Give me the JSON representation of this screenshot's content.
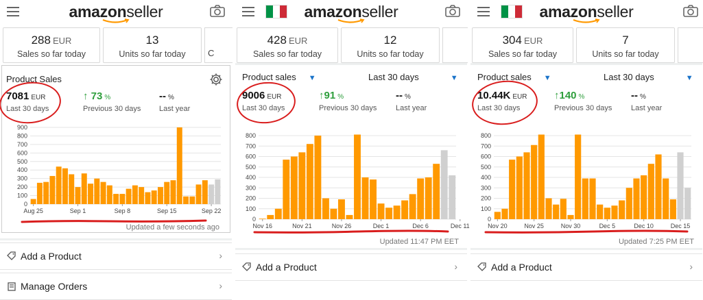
{
  "brand": {
    "word": "amazon",
    "suffix": "seller"
  },
  "panels": [
    {
      "flag": false,
      "tiles": {
        "sales_value": "288",
        "sales_currency": "EUR",
        "sales_label": "Sales so far today",
        "units_value": "13",
        "units_label": "Units so far today",
        "cut_letter": "C"
      },
      "card_title": "Product Sales",
      "period_selector": null,
      "metrics": [
        {
          "value": "7081",
          "unit": "EUR",
          "label": "Last 30 days"
        },
        {
          "value": "73",
          "unit": "%",
          "arrow": "↑",
          "label": "Previous 30 days"
        },
        {
          "value": "--",
          "unit": "%",
          "label": "Last year"
        }
      ],
      "updated": "Updated a few seconds ago",
      "actions": [
        {
          "label": "Add a Product",
          "icon": "tag-icon"
        },
        {
          "label": "Manage Orders",
          "icon": "orders-icon"
        }
      ]
    },
    {
      "flag": true,
      "tiles": {
        "sales_value": "428",
        "sales_currency": "EUR",
        "sales_label": "Sales so far today",
        "units_value": "12",
        "units_label": "Units so far today",
        "cut_letter": ""
      },
      "card_title": "Product sales",
      "period_selector": "Last 30 days",
      "metrics": [
        {
          "value": "9006",
          "unit": "EUR",
          "label": "Last 30 days"
        },
        {
          "value": "91",
          "unit": "%",
          "arrow": "↑",
          "label": "Previous 30 days"
        },
        {
          "value": "--",
          "unit": "%",
          "label": "Last year"
        }
      ],
      "updated": "Updated 11:47 PM EET",
      "actions": [
        {
          "label": "Add a Product",
          "icon": "tag-icon"
        }
      ]
    },
    {
      "flag": true,
      "tiles": {
        "sales_value": "304",
        "sales_currency": "EUR",
        "sales_label": "Sales so far today",
        "units_value": "7",
        "units_label": "Units so far today",
        "cut_letter": ""
      },
      "card_title": "Product sales",
      "period_selector": "Last 30 days",
      "metrics": [
        {
          "value": "10.44K",
          "unit": "EUR",
          "label": "Last 30 days"
        },
        {
          "value": "140",
          "unit": "%",
          "arrow": "↑",
          "label": "Previous 30 days"
        },
        {
          "value": "--",
          "unit": "%",
          "label": "Last year"
        }
      ],
      "updated": "Updated 7:25 PM EET",
      "actions": [
        {
          "label": "Add a Product",
          "icon": "tag-icon"
        }
      ]
    }
  ],
  "colors": {
    "bar": "#ff9900",
    "bar_pending": "#d0d0d0",
    "accent_blue": "#1a73c9",
    "green": "#2e9e3c",
    "annotation_red": "#d91d1d"
  },
  "chart_data": [
    {
      "type": "bar",
      "title": "",
      "ylim": [
        0,
        900
      ],
      "yticks": [
        0,
        100,
        200,
        300,
        400,
        500,
        600,
        700,
        800,
        900
      ],
      "xtick_labels": [
        "Aug 25",
        "Sep 1",
        "Sep 8",
        "Sep 15",
        "Sep 22"
      ],
      "xtick_index": [
        0,
        7,
        14,
        21,
        28
      ],
      "values": [
        60,
        250,
        260,
        330,
        440,
        420,
        350,
        200,
        360,
        240,
        300,
        260,
        220,
        120,
        120,
        180,
        220,
        200,
        140,
        160,
        200,
        260,
        280,
        900,
        90,
        90,
        230,
        280
      ],
      "pending_values": [
        230,
        290
      ],
      "grid": true
    },
    {
      "type": "bar",
      "title": "",
      "ylim": [
        0,
        800
      ],
      "yticks": [
        0,
        100,
        200,
        300,
        400,
        500,
        600,
        700,
        800
      ],
      "xtick_labels": [
        "Nov 16",
        "Nov 21",
        "Nov 26",
        "Dec 1",
        "Dec 6",
        "Dec 11"
      ],
      "xtick_index": [
        0,
        5,
        10,
        15,
        20,
        25
      ],
      "values": [
        5,
        40,
        100,
        570,
        600,
        640,
        720,
        800,
        200,
        100,
        190,
        40,
        810,
        400,
        380,
        150,
        110,
        130,
        180,
        240,
        390,
        400,
        530
      ],
      "pending_values": [
        660,
        420
      ],
      "grid": true
    },
    {
      "type": "bar",
      "title": "",
      "ylim": [
        0,
        800
      ],
      "yticks": [
        0,
        100,
        200,
        300,
        400,
        500,
        600,
        700,
        800
      ],
      "xtick_labels": [
        "Nov 20",
        "Nov 25",
        "Nov 30",
        "Dec 5",
        "Dec 10",
        "Dec 15"
      ],
      "xtick_index": [
        0,
        5,
        10,
        15,
        20,
        25
      ],
      "values": [
        70,
        100,
        570,
        600,
        640,
        710,
        810,
        200,
        140,
        195,
        40,
        810,
        390,
        390,
        140,
        110,
        130,
        180,
        300,
        390,
        420,
        530,
        620,
        390,
        190
      ],
      "pending_values": [
        640,
        300
      ],
      "grid": true
    }
  ]
}
